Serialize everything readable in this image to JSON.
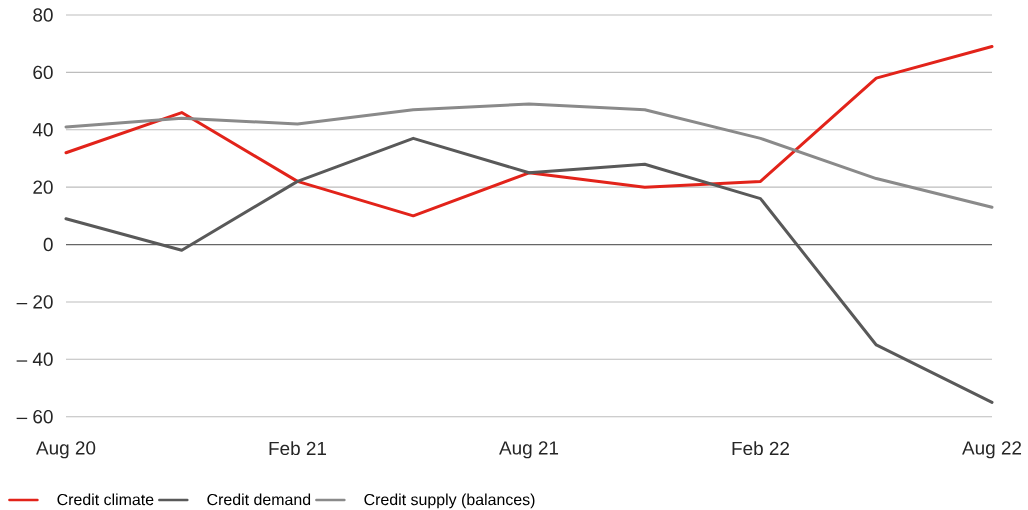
{
  "chart_data": {
    "type": "line",
    "categories": [
      "Aug 20",
      null,
      "Feb 21",
      null,
      "Aug 21",
      null,
      "Feb 22",
      null,
      "Aug 22"
    ],
    "series": [
      {
        "name": "Credit climate",
        "color": "#e2231a",
        "values": [
          32,
          46,
          22,
          10,
          25,
          20,
          22,
          58,
          69
        ]
      },
      {
        "name": "Credit demand",
        "color": "#595959",
        "values": [
          9,
          -2,
          22,
          37,
          25,
          28,
          16,
          -35,
          -55
        ]
      },
      {
        "name": "Credit supply (balances)",
        "color": "#8a8a8a",
        "values": [
          41,
          44,
          42,
          47,
          49,
          47,
          37,
          23,
          13
        ]
      }
    ],
    "ylim": [
      -60,
      80
    ],
    "yticks": [
      {
        "value": -60,
        "label": "– 60"
      },
      {
        "value": -40,
        "label": "– 40"
      },
      {
        "value": -20,
        "label": "– 20"
      },
      0,
      20,
      40,
      60,
      80
    ],
    "grid": "y",
    "legend": "bottom",
    "marker": "none",
    "line_style": "solid",
    "ref_lines": [
      {
        "axis": "y",
        "value": 0,
        "color": "#666666"
      }
    ]
  }
}
